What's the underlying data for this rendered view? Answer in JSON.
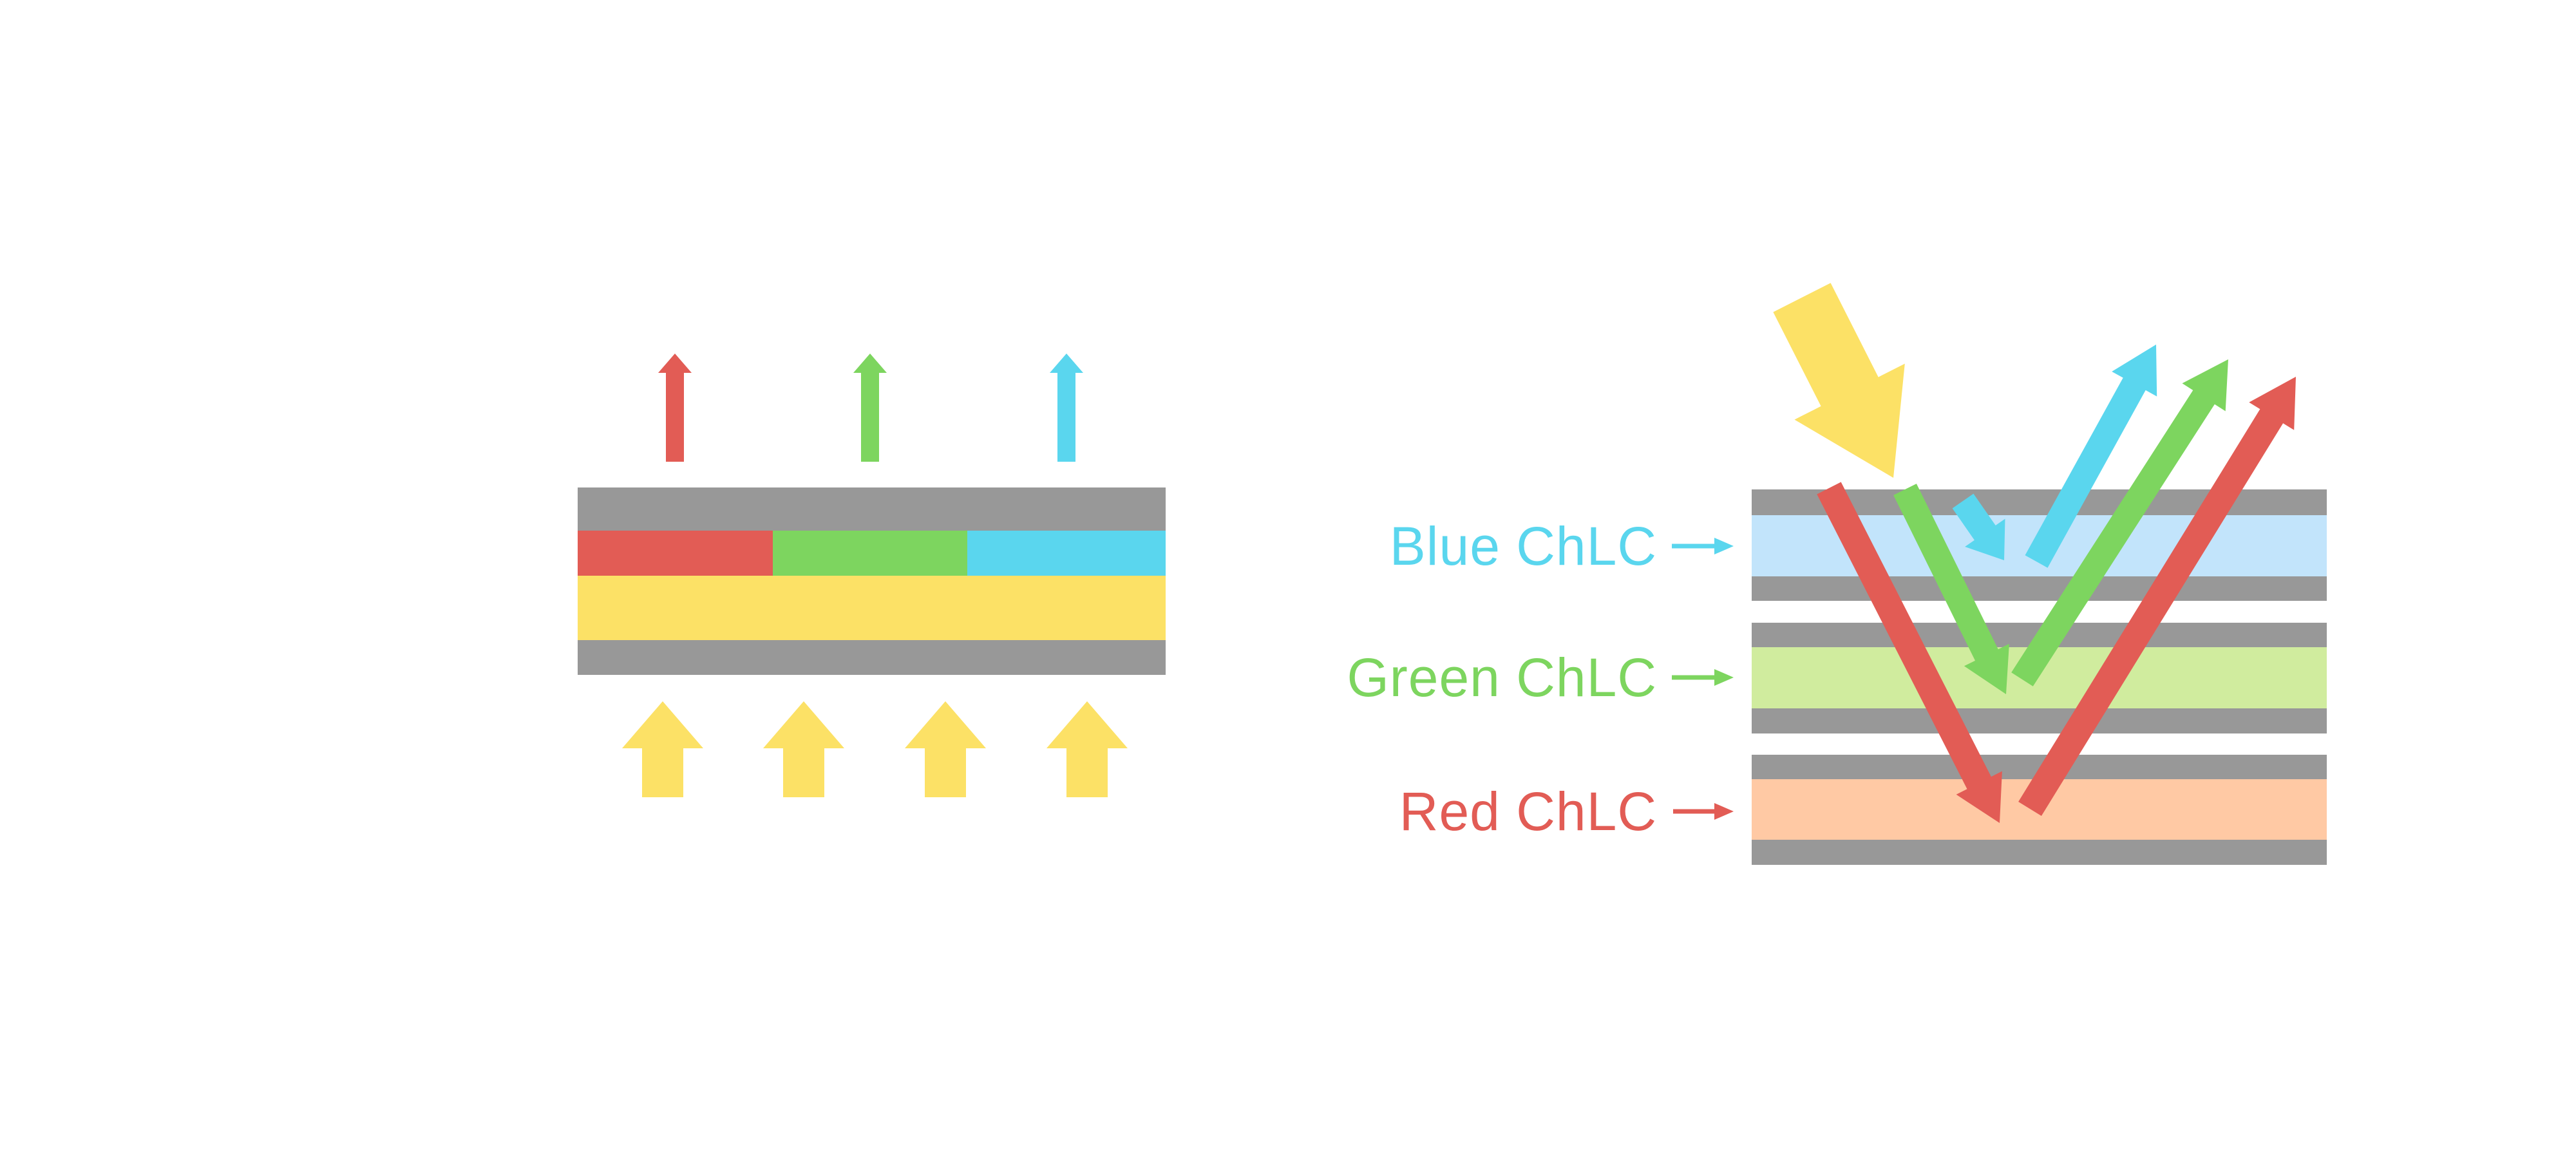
{
  "labels": {
    "blue_layer": "Blue ChLC",
    "green_layer": "Green ChLC",
    "red_layer": "Red ChLC"
  },
  "colors": {
    "red": "#E25C55",
    "green": "#7DD55F",
    "cyan": "#5AD6EE",
    "yellow": "#FCE166",
    "gray": "#989898",
    "pale_blue": "#C2E4FB",
    "pale_green": "#D0EC9E",
    "peach": "#FFC9A4",
    "background": "#FFFFFF"
  },
  "icons": {
    "incident_light": "big-yellow-arrow-icon",
    "backlight": "yellow-up-arrow-icon",
    "label_pointer": "thin-right-arrow-icon"
  }
}
